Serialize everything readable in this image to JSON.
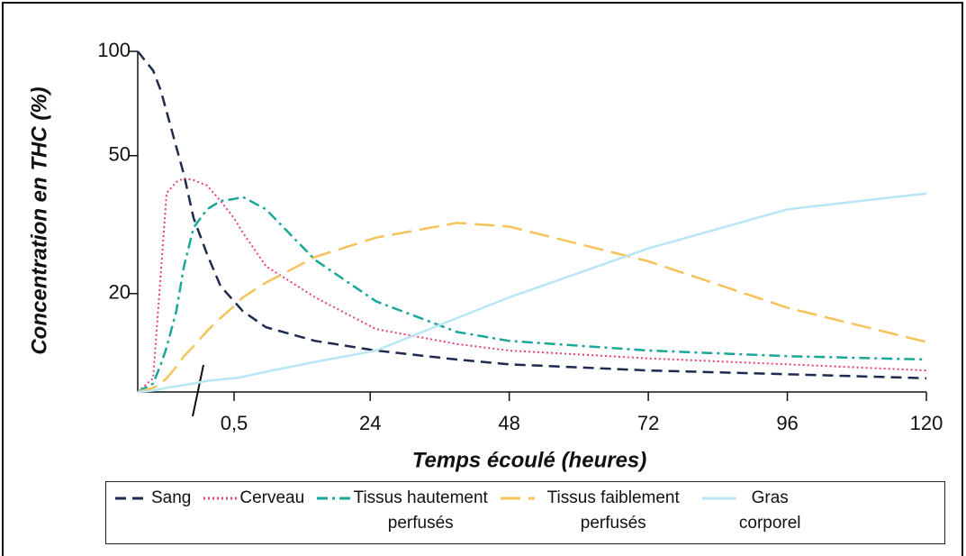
{
  "chart_data": {
    "type": "line",
    "x_label": "Temps écoulé (heures)",
    "y_label": "Concentration en THC (%)",
    "x": [
      0,
      0.08,
      0.12,
      0.15,
      0.2,
      0.24,
      0.29,
      0.36,
      0.43,
      0.5,
      2,
      6,
      14.5,
      25,
      39,
      48,
      72,
      96,
      120
    ],
    "xlim": [
      0,
      120
    ],
    "xticks": [
      {
        "value": 0.5,
        "label": "0,5"
      },
      24,
      48,
      72,
      96,
      120
    ],
    "ylim": [
      10.4,
      100
    ],
    "yticks": [
      20,
      50,
      100
    ],
    "y_scale": "log",
    "series": [
      {
        "name": "Sang",
        "color": "#1f2a4f",
        "style": "dashed",
        "values": [
          100,
          88,
          77,
          67,
          53,
          44,
          33,
          26,
          21,
          19,
          17.8,
          16,
          14.6,
          13.7,
          12.9,
          12.5,
          12.0,
          11.7,
          11.4
        ]
      },
      {
        "name": "Cerveau",
        "color": "#e8407a",
        "style": "dotted",
        "values": [
          10.4,
          11.4,
          23,
          39,
          42,
          43,
          42.5,
          41,
          37,
          33,
          30,
          24,
          19.5,
          15.8,
          14.3,
          13.7,
          13.0,
          12.5,
          12.0
        ]
      },
      {
        "name": "Tissus hautement perfusés",
        "color": "#1aa79a",
        "style": "dashdot",
        "values": [
          10.4,
          11,
          12.5,
          14,
          17.8,
          24,
          31,
          35,
          37,
          37.5,
          38,
          35,
          25,
          19,
          15.5,
          14.6,
          13.7,
          13.2,
          12.9
        ]
      },
      {
        "name": "Tissus faiblement perfusés",
        "color": "#f5c35a",
        "style": "longdash",
        "values": [
          10.4,
          10.7,
          11,
          11.4,
          12.3,
          13.2,
          14.1,
          15.6,
          17,
          18.4,
          19.5,
          21.5,
          25.5,
          29,
          32,
          31.2,
          24.8,
          18.2,
          14.5
        ]
      },
      {
        "name": "Gras corporel",
        "color": "#b9e6f5",
        "style": "solid",
        "values": [
          10.4,
          10.5,
          10.6,
          10.7,
          10.8,
          10.9,
          11,
          11.2,
          11.3,
          11.4,
          11.5,
          11.9,
          12.7,
          13.7,
          17,
          19.5,
          27,
          35,
          38.9
        ]
      }
    ]
  }
}
